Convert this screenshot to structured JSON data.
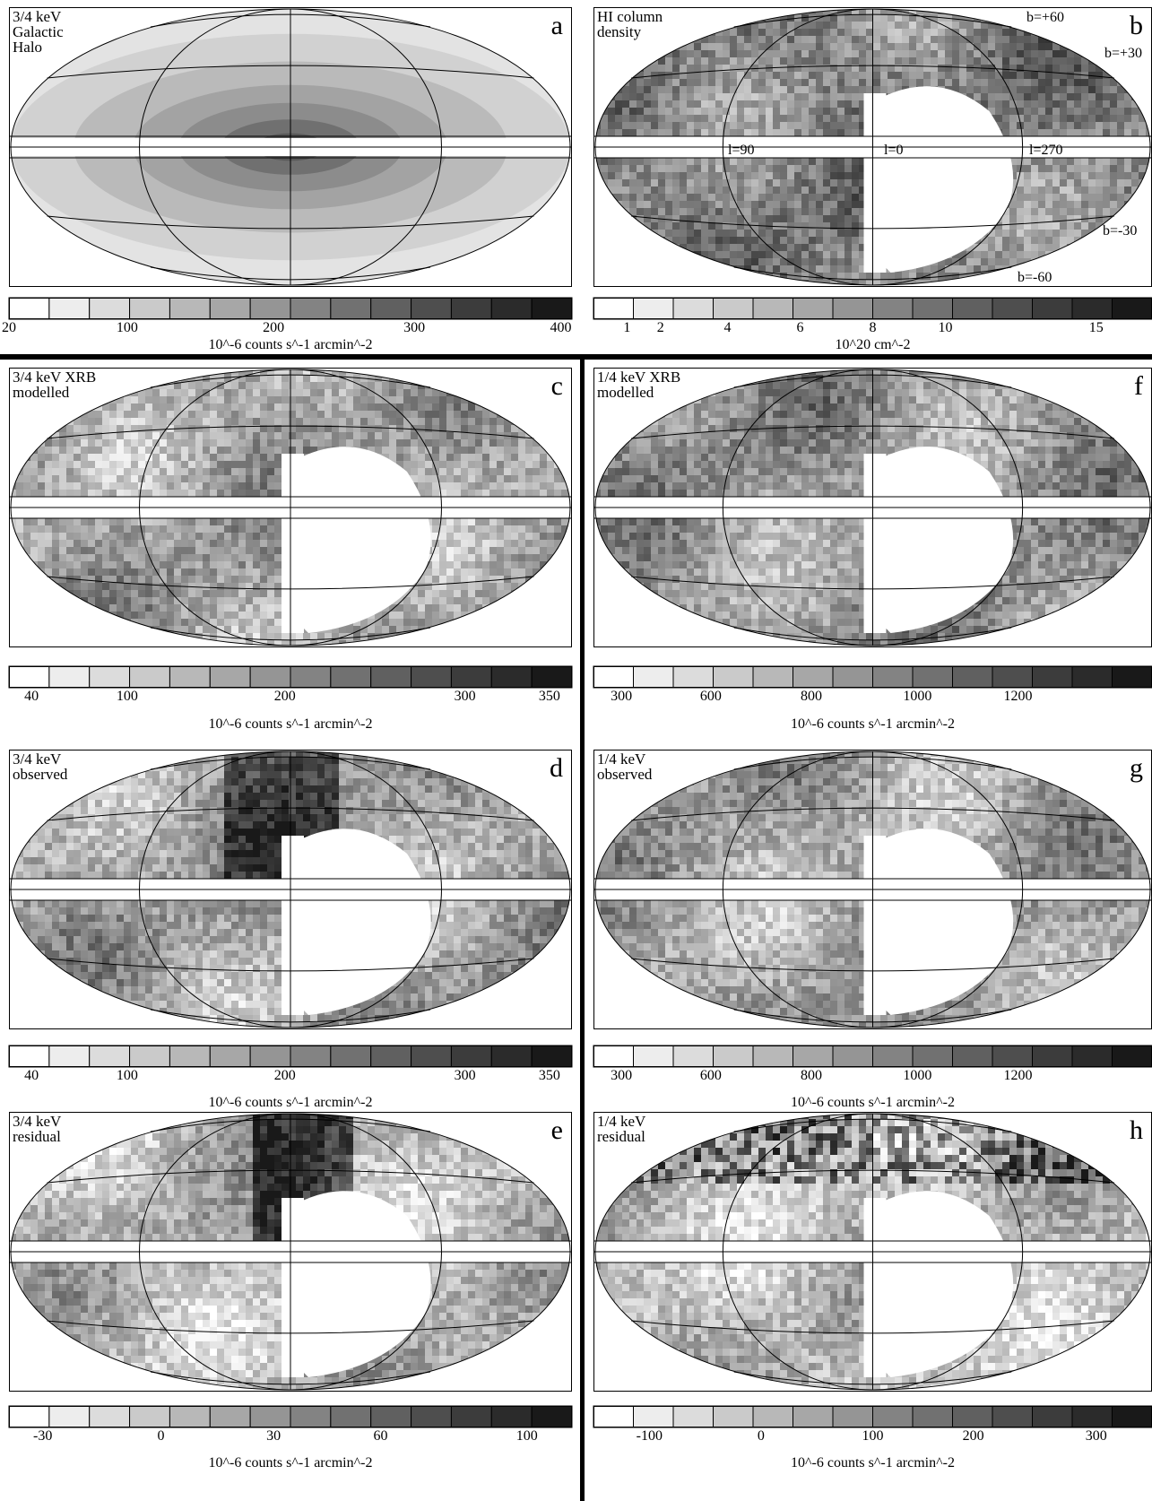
{
  "panels": [
    {
      "id": "a",
      "title": "3/4 keV\nGalactic\nHalo",
      "letter": "a"
    },
    {
      "id": "b",
      "title": "HI column\ndensity",
      "letter": "b"
    },
    {
      "id": "c",
      "title": "3/4 keV XRB\nmodelled",
      "letter": "c"
    },
    {
      "id": "d",
      "title": "3/4 keV\nobserved",
      "letter": "d"
    },
    {
      "id": "e",
      "title": "3/4 keV\nresidual",
      "letter": "e"
    },
    {
      "id": "f",
      "title": "1/4 keV XRB\nmodelled",
      "letter": "f"
    },
    {
      "id": "g",
      "title": "1/4 keV\nobserved",
      "letter": "g"
    },
    {
      "id": "h",
      "title": "1/4 keV\nresidual",
      "letter": "h"
    }
  ],
  "annotations_b": {
    "b60": "b=+60",
    "b30": "b=+30",
    "bm30": "b=-30",
    "bm60": "b=-60",
    "l90": "l=90",
    "l0": "l=0",
    "l270": "l=270"
  },
  "colorbars": {
    "a": {
      "ticks": [
        "20",
        "100",
        "200",
        "300",
        "400"
      ],
      "unit": "10^-6 counts s^-1 arcmin^-2"
    },
    "b": {
      "ticks": [
        "1",
        "2",
        "4",
        "6",
        "8",
        "10",
        "15"
      ],
      "unit": "10^20 cm^-2"
    },
    "c": {
      "ticks": [
        "40",
        "100",
        "200",
        "300",
        "350"
      ],
      "unit": "10^-6 counts s^-1 arcmin^-2"
    },
    "d": {
      "ticks": [
        "40",
        "100",
        "200",
        "300",
        "350"
      ],
      "unit": "10^-6 counts s^-1 arcmin^-2"
    },
    "e": {
      "ticks": [
        "-30",
        "0",
        "30",
        "60",
        "100"
      ],
      "unit": "10^-6 counts s^-1 arcmin^-2"
    },
    "f": {
      "ticks": [
        "300",
        "600",
        "800",
        "1000",
        "1200"
      ],
      "unit": "10^-6 counts s^-1 arcmin^-2"
    },
    "g": {
      "ticks": [
        "300",
        "600",
        "800",
        "1000",
        "1200"
      ],
      "unit": "10^-6 counts s^-1 arcmin^-2"
    },
    "h": {
      "ticks": [
        "-100",
        "0",
        "100",
        "200",
        "300"
      ],
      "unit": "10^-6 counts s^-1 arcmin^-2"
    }
  }
}
